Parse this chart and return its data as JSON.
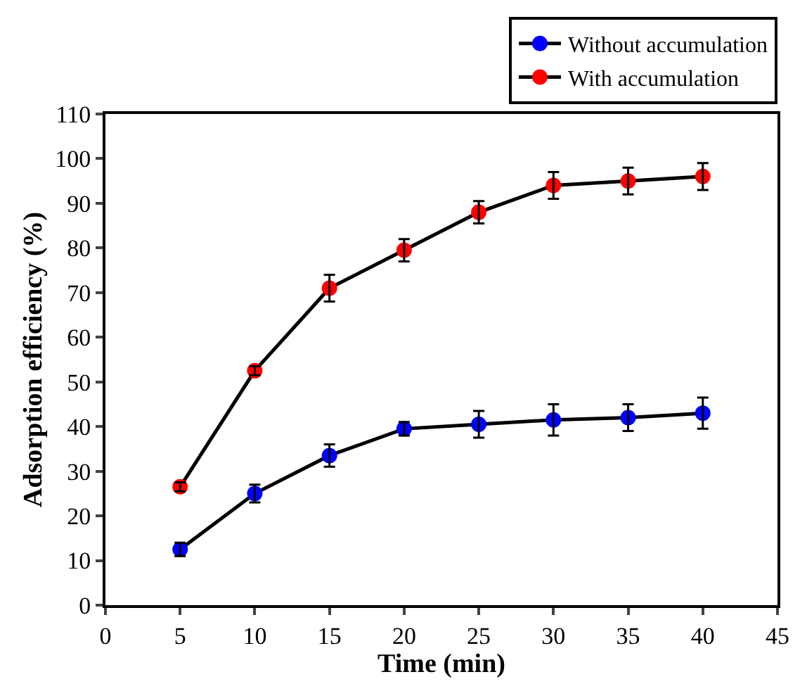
{
  "chart_data": {
    "type": "line",
    "xlabel": "Time (min)",
    "ylabel": "Adsorption efficiency (%)",
    "x": [
      5,
      10,
      15,
      20,
      25,
      30,
      35,
      40
    ],
    "series": [
      {
        "name": "Without accumulation",
        "color": "#0000ff",
        "values": [
          12.5,
          25,
          33.5,
          39.5,
          40.5,
          41.5,
          42,
          43
        ],
        "errors": [
          1.5,
          2,
          2.5,
          1.5,
          3,
          3.5,
          3,
          3.5
        ]
      },
      {
        "name": "With accumulation",
        "color": "#ff0000",
        "values": [
          26.5,
          52.5,
          71,
          79.5,
          88,
          94,
          95,
          96
        ],
        "errors": [
          1,
          1,
          3,
          2.5,
          2.5,
          3,
          3,
          3
        ]
      }
    ],
    "xlim": [
      0,
      45
    ],
    "xticks": [
      0,
      5,
      10,
      15,
      20,
      25,
      30,
      35,
      40,
      45
    ],
    "ylim": [
      0,
      110
    ],
    "yticks": [
      0,
      10,
      20,
      30,
      40,
      50,
      60,
      70,
      80,
      90,
      100,
      110
    ],
    "legend": "top right",
    "marker": "circle",
    "line_style": "solid"
  }
}
